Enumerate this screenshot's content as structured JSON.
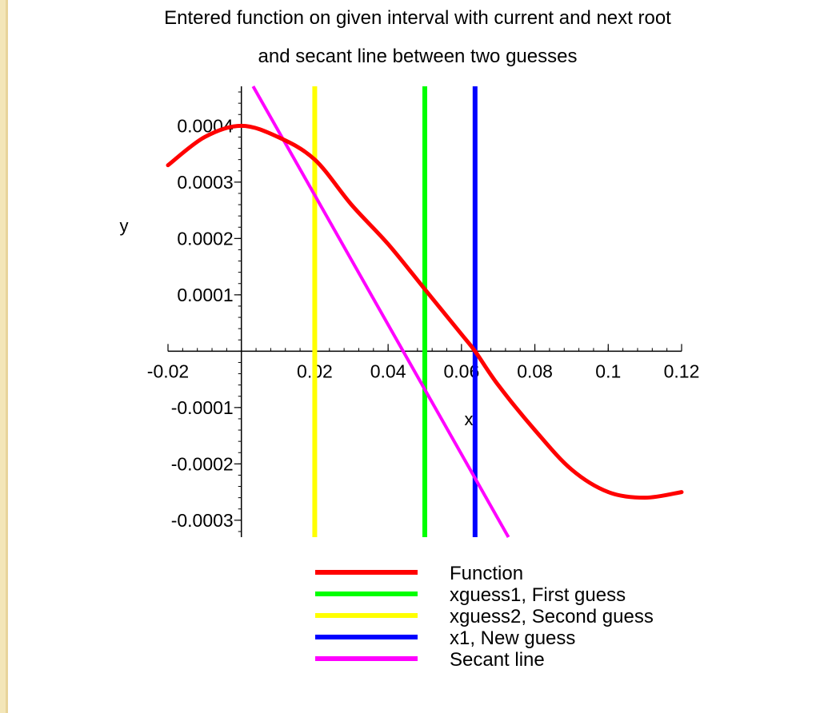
{
  "chart_data": {
    "type": "line",
    "title": [
      "Entered function on given interval with current and next root",
      "and secant line between two guesses"
    ],
    "xlabel": "x",
    "ylabel": "y",
    "xlim": [
      -0.02,
      0.12
    ],
    "ylim": [
      -0.00033,
      0.00047
    ],
    "x_ticks": [
      -0.02,
      0.02,
      0.04,
      0.06,
      0.08,
      0.1,
      0.12
    ],
    "x_tick_labels": [
      "-0.02",
      "0.02",
      "0.04",
      "0.06",
      "0.08",
      "0.1",
      "0.12"
    ],
    "y_ticks": [
      0.0004,
      0.0003,
      0.0002,
      0.0001,
      -0.0001,
      -0.0002,
      -0.0003
    ],
    "y_tick_labels": [
      "0.0004",
      "0.0003",
      "0.0002",
      "0.0001",
      "-0.0001",
      "-0.0002",
      "-0.0003"
    ],
    "series": [
      {
        "name": "Function",
        "color": "#ff0000",
        "kind": "curve",
        "x": [
          -0.02,
          -0.01,
          0.0,
          0.01,
          0.02,
          0.03,
          0.04,
          0.05,
          0.06,
          0.0637,
          0.07,
          0.08,
          0.09,
          0.1,
          0.11,
          0.12
        ],
        "y": [
          0.00033,
          0.00038,
          0.0004,
          0.00038,
          0.00034,
          0.00026,
          0.00019,
          0.00011,
          3e-05,
          0.0,
          -6e-05,
          -0.00014,
          -0.00021,
          -0.00025,
          -0.00026,
          -0.00025
        ]
      },
      {
        "name": "xguess1, First guess",
        "color": "#00ff00",
        "kind": "vline",
        "x": 0.05
      },
      {
        "name": "xguess2, Second guess",
        "color": "#ffff00",
        "kind": "vline",
        "x": 0.02
      },
      {
        "name": "x1, New guess",
        "color": "#0000ff",
        "kind": "vline",
        "x": 0.0637
      },
      {
        "name": "Secant line",
        "color": "#ff00ff",
        "kind": "segment",
        "x": [
          0.0032,
          0.0728
        ],
        "y": [
          0.00047,
          -0.00033
        ]
      }
    ],
    "legend_position": "bottom",
    "grid": false
  }
}
